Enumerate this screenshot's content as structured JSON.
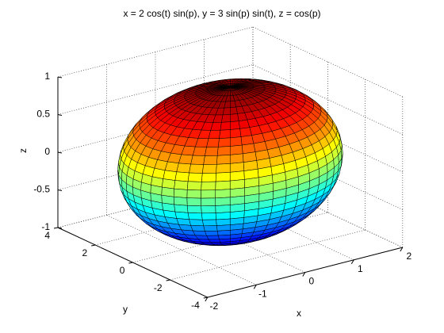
{
  "chart_data": {
    "type": "surface",
    "title": "x = 2 cos(t) sin(p), y = 3 sin(p) sin(t), z = cos(p)",
    "xlabel": "x",
    "ylabel": "y",
    "zlabel": "z",
    "radii": [
      2,
      3,
      1
    ],
    "colormap": "jet",
    "xlim": [
      -2,
      2
    ],
    "xticks": [
      -2,
      -1,
      0,
      1,
      2
    ],
    "ylim": [
      -4,
      4
    ],
    "yticks": [
      -4,
      -2,
      0,
      2,
      4
    ],
    "zlim": [
      -1,
      1
    ],
    "zticks": [
      -1,
      -0.5,
      0,
      0.5,
      1
    ],
    "grid": true
  }
}
